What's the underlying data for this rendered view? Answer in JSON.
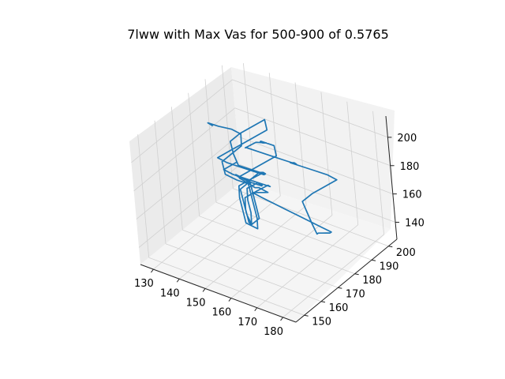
{
  "chart_data": {
    "type": "line",
    "projection": "3d",
    "title": "7lww with Max Vas for 500-900 of 0.5765",
    "xlabel": "",
    "ylabel": "",
    "zlabel": "",
    "xlim": [
      125,
      185
    ],
    "ylim": [
      145,
      205
    ],
    "zlim": [
      128,
      215
    ],
    "x_ticks": [
      "130",
      "140",
      "150",
      "160",
      "170",
      "180"
    ],
    "y_ticks": [
      "150",
      "160",
      "170",
      "180",
      "190",
      "200"
    ],
    "z_ticks": [
      "140",
      "160",
      "180",
      "200"
    ],
    "grid": true,
    "legend": "none",
    "colors": {
      "series": "#1f77b4",
      "pane_left": "#ebebeb",
      "pane_back": "#f2f2f2",
      "pane_floor": "#f5f5f5"
    },
    "series": [
      {
        "x": [
          137,
          134,
          131,
          133,
          136,
          138,
          140,
          138,
          136,
          139,
          142,
          145,
          143,
          140,
          138,
          141,
          144,
          147,
          145,
          142,
          140,
          143,
          146,
          149,
          151,
          148,
          146,
          149,
          152,
          155,
          153,
          150,
          152,
          155,
          158,
          156,
          153,
          151,
          154,
          157,
          160,
          162,
          159,
          156,
          158,
          161,
          164,
          166,
          163,
          160,
          158,
          161,
          164,
          167,
          169,
          172,
          175,
          178,
          180,
          177,
          174,
          171,
          168,
          165,
          162,
          160,
          163,
          166,
          169,
          172,
          170,
          167,
          164,
          161,
          158,
          155,
          152,
          149,
          146,
          144,
          141,
          138,
          136,
          139,
          142,
          145,
          148,
          150,
          147,
          144,
          141,
          139,
          142,
          145,
          148,
          146,
          143,
          140,
          138,
          141,
          144,
          147,
          150,
          148,
          145,
          142,
          140,
          143,
          146,
          149,
          152,
          150,
          147,
          144,
          142,
          145,
          148,
          151,
          149,
          146,
          143,
          141,
          144,
          147,
          150,
          148,
          145,
          142,
          140,
          143
        ],
        "y": [
          175,
          178,
          181,
          184,
          187,
          189,
          186,
          183,
          180,
          177,
          179,
          182,
          185,
          188,
          186,
          183,
          180,
          178,
          181,
          184,
          187,
          189,
          186,
          183,
          180,
          177,
          175,
          178,
          181,
          184,
          186,
          183,
          180,
          177,
          175,
          172,
          170,
          173,
          176,
          179,
          182,
          185,
          188,
          190,
          193,
          196,
          199,
          201,
          198,
          195,
          192,
          190,
          188,
          186,
          184,
          182,
          180,
          178,
          176,
          174,
          172,
          170,
          168,
          166,
          164,
          162,
          160,
          158,
          156,
          154,
          152,
          154,
          157,
          160,
          163,
          166,
          169,
          172,
          175,
          178,
          181,
          184,
          187,
          189,
          186,
          183,
          180,
          177,
          175,
          178,
          181,
          184,
          187,
          189,
          186,
          183,
          180,
          177,
          175,
          178,
          181,
          184,
          187,
          189,
          186,
          183,
          180,
          177,
          175,
          178,
          181,
          184,
          187,
          189,
          186,
          183,
          180,
          177,
          175,
          178,
          181,
          184,
          187,
          189,
          186,
          183,
          180,
          177,
          175,
          178
        ],
        "z": [
          205,
          201,
          197,
          193,
          190,
          186,
          182,
          178,
          174,
          170,
          166,
          162,
          158,
          154,
          150,
          146,
          142,
          139,
          143,
          147,
          151,
          155,
          159,
          163,
          167,
          171,
          175,
          179,
          183,
          187,
          191,
          195,
          199,
          203,
          207,
          209,
          205,
          201,
          197,
          193,
          189,
          185,
          181,
          177,
          173,
          169,
          165,
          161,
          157,
          153,
          149,
          145,
          141,
          138,
          142,
          146,
          150,
          154,
          158,
          162,
          166,
          170,
          174,
          178,
          182,
          186,
          190,
          194,
          198,
          202,
          206,
          202,
          198,
          194,
          190,
          186,
          182,
          178,
          174,
          170,
          166,
          162,
          158,
          154,
          150,
          146,
          142,
          139,
          143,
          147,
          151,
          155,
          159,
          163,
          167,
          171,
          175,
          179,
          183,
          187,
          191,
          195,
          199,
          203,
          199,
          195,
          191,
          187,
          183,
          179,
          175,
          171,
          167,
          163,
          159,
          155,
          151,
          147,
          143,
          140,
          144,
          148,
          152,
          156,
          160,
          164,
          168,
          172,
          176,
          180
        ]
      }
    ]
  }
}
